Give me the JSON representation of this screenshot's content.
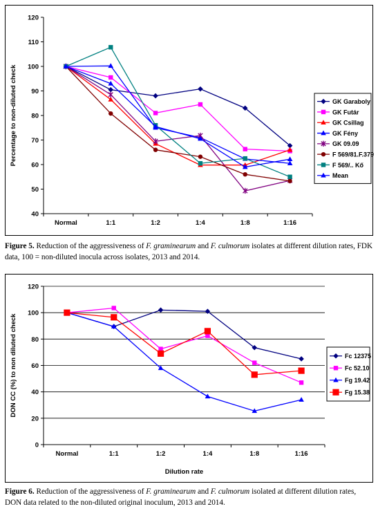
{
  "figures": [
    {
      "caption": {
        "label": "Figure 5.",
        "pre": " Reduction of the aggressiveness of ",
        "sp1": "F. graminearum",
        "mid": " and ",
        "sp2": "F. culmorum",
        "post": " isolates at different dilution rates, FDK data, 100 = non-diluted inocula across isolates, 2013 and 2014."
      }
    },
    {
      "caption": {
        "label": "Figure 6.",
        "pre": " Reduction of the aggressiveness of ",
        "sp1": "F. graminearum",
        "mid": " and ",
        "sp2": "F. culmorum",
        "post": " isolated at different dilution rates, DON data related to the non-diluted original inoculum, 2013 and 2014."
      }
    }
  ],
  "chart_data": [
    {
      "type": "line",
      "title": "",
      "xlabel": "",
      "ylabel": "Percentage to non-diluted check",
      "categories": [
        "Normal",
        "1:1",
        "1:2",
        "1:4",
        "1:8",
        "1:16"
      ],
      "yticks": [
        40,
        50,
        60,
        70,
        80,
        90,
        100,
        110,
        120
      ],
      "ylim": [
        40,
        120
      ],
      "grid": false,
      "legend_position": "right",
      "series": [
        {
          "name": "GK Garaboly",
          "color": "#000080",
          "marker": "diamond",
          "values": [
            100,
            90.5,
            88,
            90.8,
            83,
            67.7
          ]
        },
        {
          "name": "GK Futár",
          "color": "#ff00ff",
          "marker": "square",
          "values": [
            100,
            95.5,
            81,
            84.5,
            66.3,
            65.5
          ]
        },
        {
          "name": "GK Csillag",
          "color": "#ff0000",
          "marker": "triangle",
          "values": [
            100,
            86.5,
            68.5,
            59.8,
            59.8,
            66
          ]
        },
        {
          "name": "GK Fény",
          "color": "#0000ff",
          "marker": "triangle",
          "values": [
            100,
            100.2,
            75,
            71,
            62.3,
            60.5
          ]
        },
        {
          "name": "GK 09.09",
          "color": "#800080",
          "marker": "x",
          "values": [
            100,
            88.5,
            69.5,
            71.8,
            49.3,
            53.5
          ]
        },
        {
          "name": "F 569/81.F.379",
          "color": "#800000",
          "marker": "circle",
          "values": [
            100,
            80.8,
            66,
            63.2,
            56,
            53.3
          ]
        },
        {
          "name": "F 569/.. Kő",
          "color": "#008080",
          "marker": "square",
          "values": [
            100,
            107.8,
            76,
            60.5,
            62.5,
            55
          ]
        },
        {
          "name": "Mean",
          "color": "#0000ff",
          "marker": "triangle",
          "values": [
            100,
            93,
            75.5,
            70.5,
            59,
            62.2
          ]
        }
      ]
    },
    {
      "type": "line",
      "title": "",
      "xlabel": "Dilution rate",
      "ylabel": "DON CC (%) to non diluted check",
      "categories": [
        "Normal",
        "1:1",
        "1:2",
        "1:4",
        "1:8",
        "1:16"
      ],
      "yticks": [
        0,
        20,
        40,
        60,
        80,
        100,
        120
      ],
      "ylim": [
        0,
        120
      ],
      "grid": true,
      "legend_position": "right",
      "series": [
        {
          "name": "Fc 12375",
          "color": "#000080",
          "marker": "diamond",
          "values": [
            100,
            89.5,
            102,
            101,
            73.5,
            65
          ]
        },
        {
          "name": "Fc 52.10",
          "color": "#ff00ff",
          "marker": "square",
          "values": [
            100,
            103.5,
            72.5,
            82.5,
            62,
            47
          ]
        },
        {
          "name": "Fg 19.42",
          "color": "#0000ff",
          "marker": "triangle",
          "values": [
            100,
            89.5,
            58,
            36.5,
            25.5,
            34
          ]
        },
        {
          "name": "Fg 15.38",
          "color": "#ff0000",
          "marker": "bigsquare",
          "values": [
            100,
            96.5,
            69,
            86,
            53,
            56
          ]
        }
      ]
    }
  ]
}
